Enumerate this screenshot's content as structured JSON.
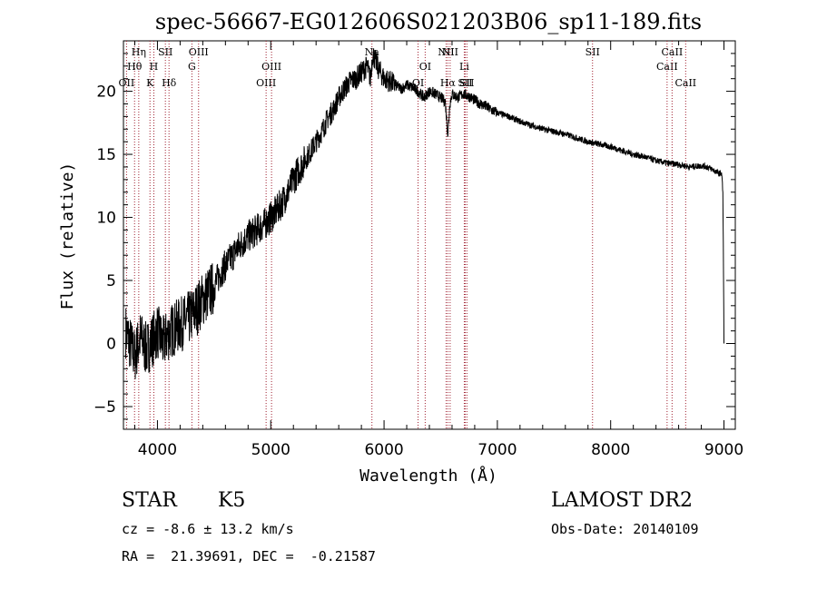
{
  "chart_data": {
    "type": "line",
    "title": "spec-56667-EG012606S021203B06_sp11-189.fits",
    "xlabel": "Wavelength (Å)",
    "ylabel": "Flux (relative)",
    "xlim": [
      3700,
      9100
    ],
    "ylim": [
      -6.8,
      24.0
    ],
    "xticks": [
      4000,
      5000,
      6000,
      7000,
      8000,
      9000
    ],
    "yticks": [
      -5,
      0,
      5,
      10,
      15,
      20
    ],
    "grid": false,
    "series": [
      {
        "x": [
          3720,
          3760,
          3800,
          3850,
          3900,
          3950,
          4000,
          4050,
          4100,
          4150,
          4200,
          4250,
          4300,
          4350,
          4400,
          4450,
          4500,
          4550,
          4600,
          4650,
          4700,
          4750,
          4800,
          4850,
          4900,
          4950,
          5000,
          5050,
          5100,
          5150,
          5200,
          5250,
          5300,
          5350,
          5400,
          5450,
          5500,
          5550,
          5600,
          5650,
          5700,
          5750,
          5800,
          5850,
          5880,
          5900,
          5920,
          5950,
          6000,
          6050,
          6100,
          6150,
          6200,
          6250,
          6300,
          6350,
          6400,
          6450,
          6500,
          6540,
          6563,
          6580,
          6600,
          6650,
          6700,
          6750,
          6800,
          6850,
          6900,
          6950,
          7000,
          7100,
          7200,
          7300,
          7400,
          7500,
          7600,
          7700,
          7800,
          7900,
          8000,
          8100,
          8200,
          8300,
          8400,
          8500,
          8600,
          8700,
          8800,
          8850,
          8900,
          8950,
          8980,
          8990,
          8995,
          9000
        ],
        "y": [
          1.0,
          0.0,
          -1.0,
          0.5,
          -0.5,
          0.2,
          1.0,
          0.0,
          0.8,
          1.2,
          1.5,
          1.8,
          2.2,
          2.8,
          3.5,
          4.0,
          4.5,
          5.5,
          6.2,
          6.8,
          7.5,
          8.0,
          8.5,
          8.8,
          9.2,
          9.5,
          10.0,
          10.5,
          11.2,
          12.0,
          13.0,
          13.8,
          14.5,
          15.2,
          16.0,
          16.8,
          17.8,
          18.5,
          19.5,
          20.2,
          20.8,
          21.0,
          21.5,
          22.0,
          21.0,
          23.0,
          22.5,
          21.8,
          21.0,
          20.8,
          20.5,
          20.2,
          20.5,
          20.3,
          20.0,
          19.5,
          20.0,
          19.8,
          19.5,
          19.2,
          16.5,
          19.0,
          19.8,
          19.5,
          19.8,
          19.6,
          19.3,
          19.0,
          18.8,
          18.5,
          18.3,
          18.0,
          17.6,
          17.3,
          17.0,
          16.8,
          16.6,
          16.3,
          16.0,
          15.8,
          15.6,
          15.3,
          15.0,
          14.8,
          14.5,
          14.3,
          14.2,
          14.0,
          14.1,
          14.0,
          13.8,
          13.5,
          13.5,
          12.0,
          7.0,
          0.0
        ]
      }
    ],
    "line_markers": [
      {
        "name": "OII",
        "wavelength": 3727,
        "row": 2
      },
      {
        "name": "Hθ",
        "wavelength": 3798,
        "row": 1
      },
      {
        "name": "Hη",
        "wavelength": 3835,
        "row": 0
      },
      {
        "name": "K",
        "wavelength": 3934,
        "row": 2
      },
      {
        "name": "H",
        "wavelength": 3968,
        "row": 1
      },
      {
        "name": "SII",
        "wavelength": 4070,
        "row": 0
      },
      {
        "name": "Hδ",
        "wavelength": 4102,
        "row": 2
      },
      {
        "name": "G",
        "wavelength": 4304,
        "row": 1
      },
      {
        "name": "OIII",
        "wavelength": 4363,
        "row": 0
      },
      {
        "name": "OIII",
        "wavelength": 4959,
        "row": 2
      },
      {
        "name": "OIII",
        "wavelength": 5007,
        "row": 1
      },
      {
        "name": "Na",
        "wavelength": 5893,
        "row": 0
      },
      {
        "name": "OI",
        "wavelength": 6300,
        "row": 2
      },
      {
        "name": "OI",
        "wavelength": 6363,
        "row": 1
      },
      {
        "name": "NII",
        "wavelength": 6548,
        "row": 0
      },
      {
        "name": "Hα",
        "wavelength": 6563,
        "row": 2
      },
      {
        "name": "NII",
        "wavelength": 6583,
        "row": 0
      },
      {
        "name": "Li",
        "wavelength": 6708,
        "row": 1
      },
      {
        "name": "SII",
        "wavelength": 6716,
        "row": 2
      },
      {
        "name": "SII",
        "wavelength": 6731,
        "row": 2
      },
      {
        "name": "SII",
        "wavelength": 7840,
        "row": 0
      },
      {
        "name": "CaII",
        "wavelength": 8498,
        "row": 1
      },
      {
        "name": "CaII",
        "wavelength": 8542,
        "row": 0
      },
      {
        "name": "CaII",
        "wavelength": 8662,
        "row": 2
      }
    ],
    "line_marker_color": "#a02030"
  },
  "info": {
    "class": "STAR",
    "subclass": "K5",
    "survey": "LAMOST DR2",
    "cz": "cz = -8.6 ± 13.2 km/s",
    "obs_date": "Obs-Date: 20140109",
    "coords": "RA =  21.39691, DEC =  -0.21587"
  }
}
